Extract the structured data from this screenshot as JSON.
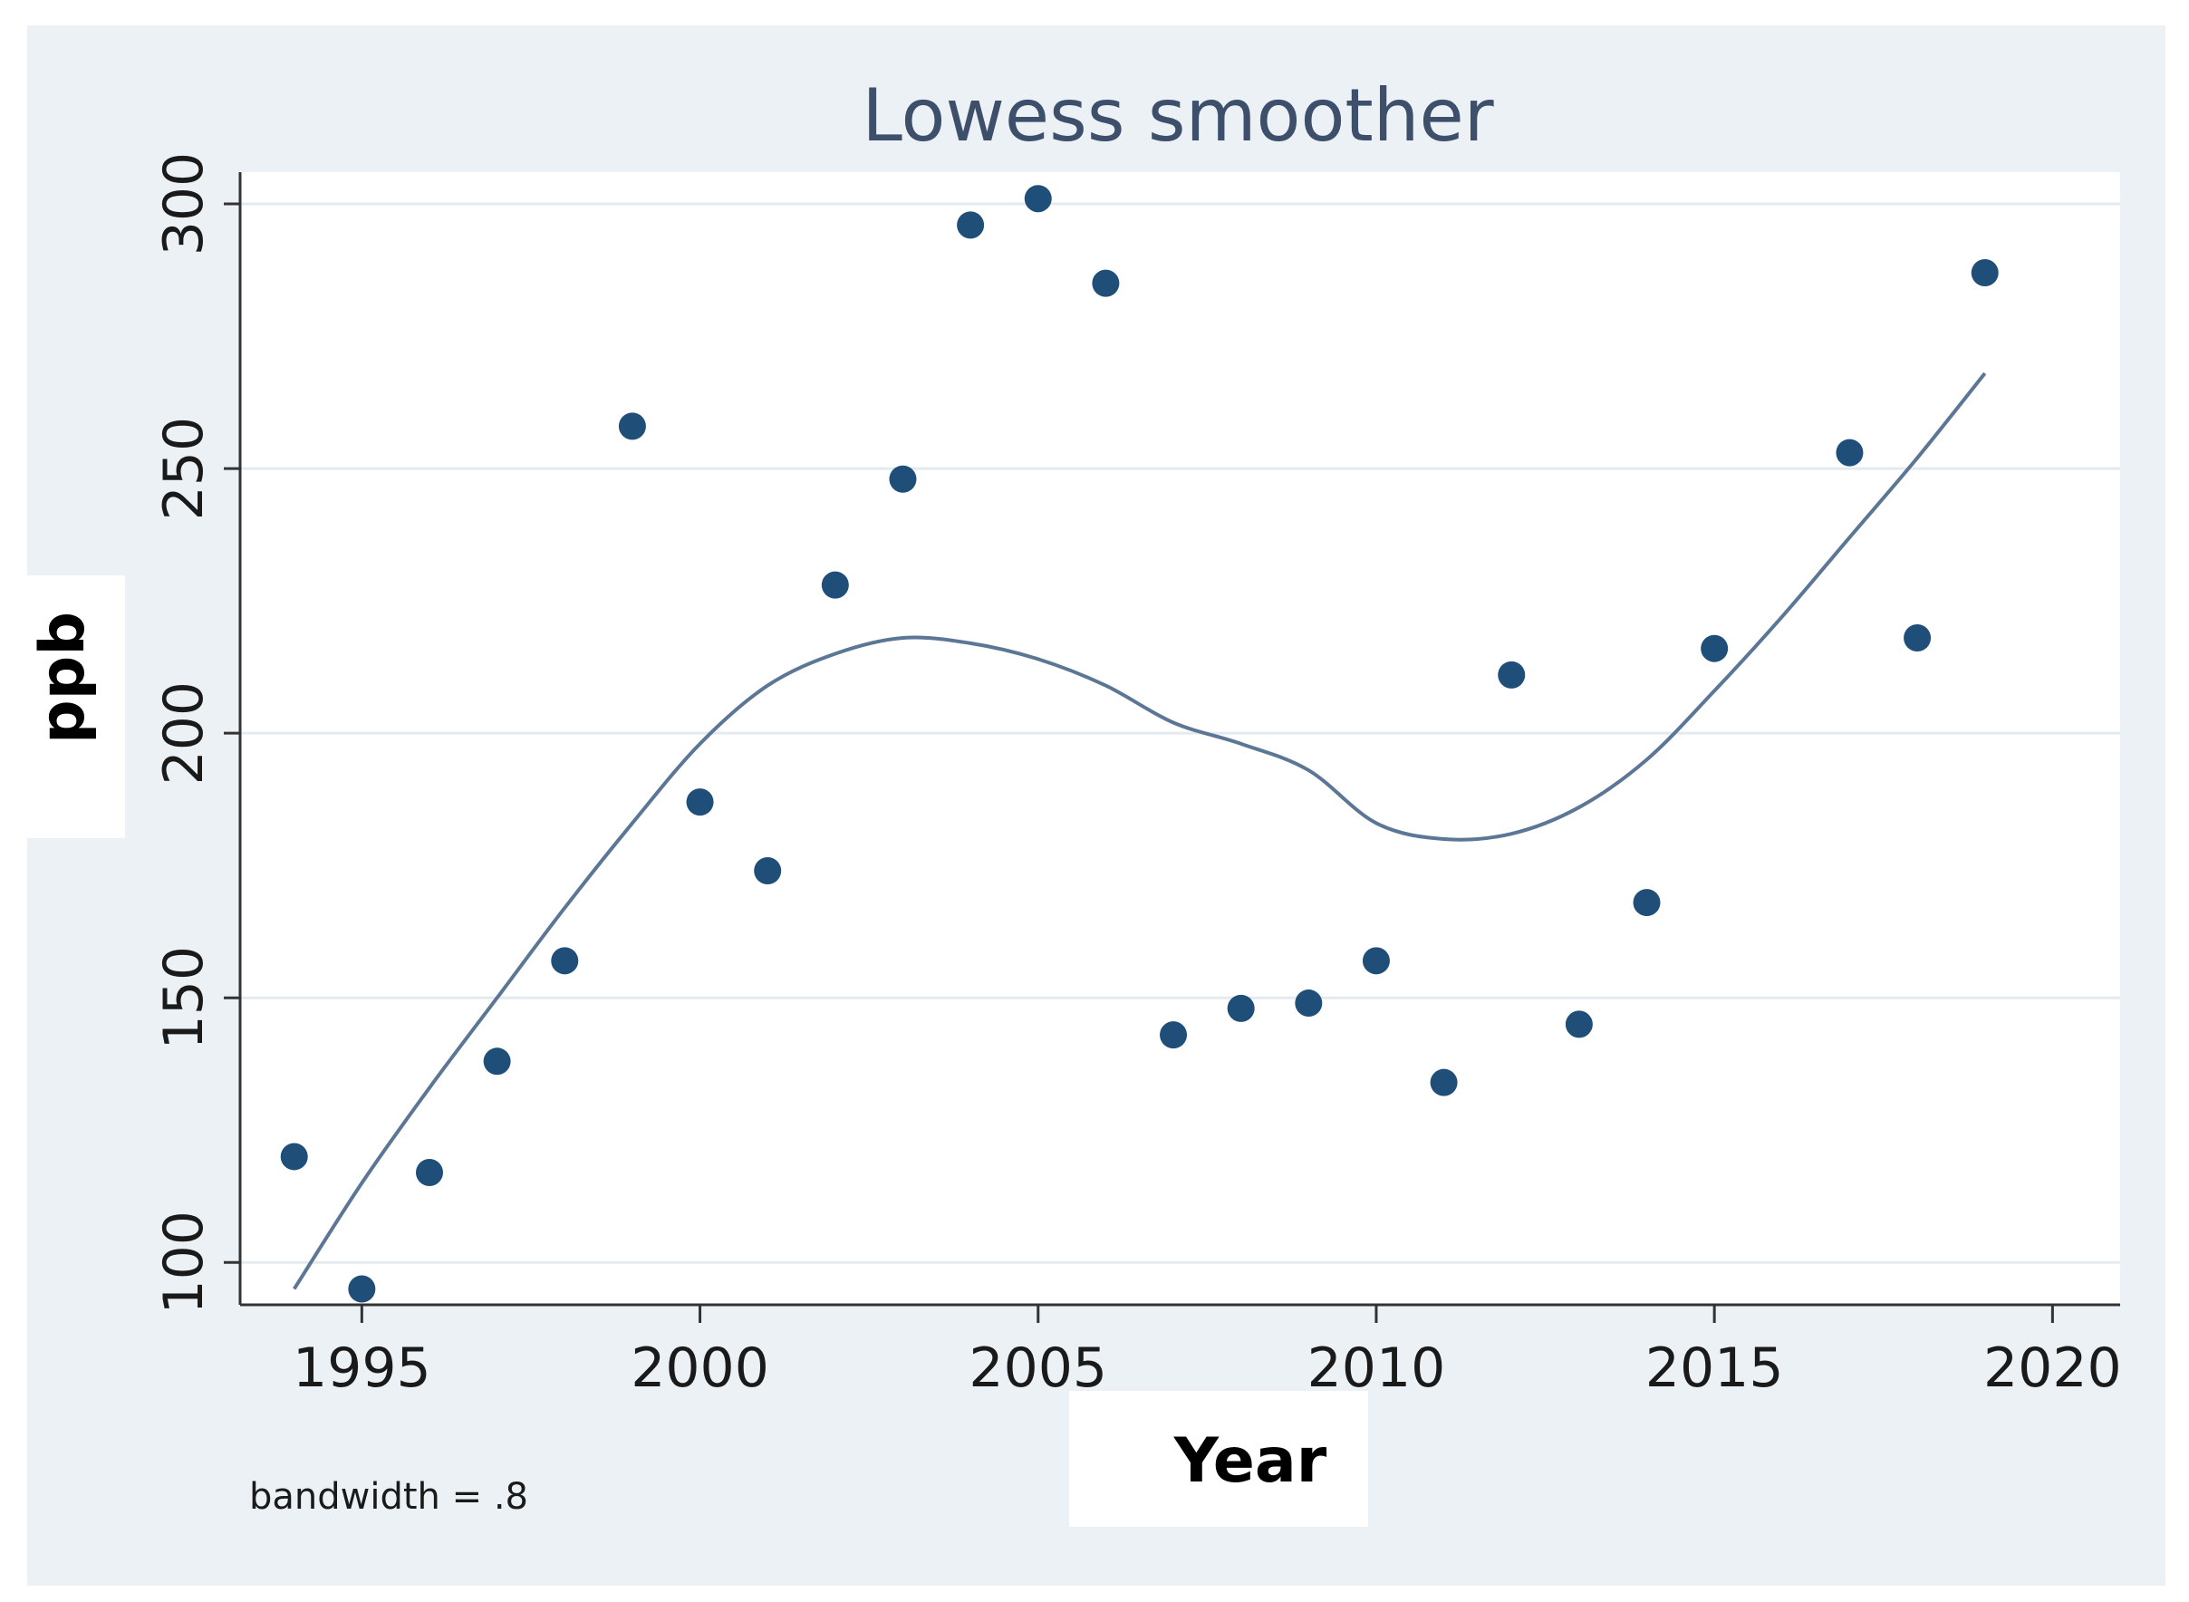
{
  "chart_data": {
    "type": "scatter",
    "title": "Lowess smoother",
    "xlabel": "Year",
    "ylabel": "ppb",
    "note": "bandwidth = .8",
    "xlim": [
      1993.2,
      2021
    ],
    "ylim": [
      92,
      306
    ],
    "x_ticks": [
      1995,
      2000,
      2005,
      2010,
      2015,
      2020
    ],
    "y_ticks": [
      100,
      150,
      200,
      250,
      300
    ],
    "grid": true,
    "colors": {
      "background": "#ebf1f4",
      "plot": "#ffffff",
      "marker": "#1f4e79",
      "line": "#5b7795",
      "grid": "#e4ebf0"
    },
    "series": [
      {
        "name": "ppb",
        "kind": "scatter",
        "x": [
          1994,
          1995,
          1996,
          1997,
          1998,
          1999,
          2000,
          2001,
          2002,
          2003,
          2004,
          2005,
          2006,
          2007,
          2008,
          2009,
          2010,
          2011,
          2012,
          2013,
          2014,
          2015,
          2017,
          2018,
          2019
        ],
        "y": [
          120,
          95,
          117,
          138,
          157,
          258,
          187,
          174,
          228,
          248,
          296,
          301,
          285,
          143,
          148,
          149,
          157,
          134,
          211,
          145,
          168,
          216,
          253,
          218,
          287
        ]
      },
      {
        "name": "lowess",
        "kind": "line",
        "x": [
          1994,
          1995,
          1996,
          1997,
          1998,
          1999,
          2000,
          2001,
          2002,
          2003,
          2004,
          2005,
          2006,
          2007,
          2008,
          2009,
          2010,
          2011,
          2012,
          2013,
          2014,
          2015,
          2016,
          2017,
          2018,
          2019
        ],
        "y": [
          95,
          115,
          133,
          150,
          167,
          183,
          198,
          209,
          215,
          218,
          217,
          214,
          209,
          202,
          198,
          193,
          183,
          180,
          181,
          186,
          195,
          208,
          222,
          237,
          252,
          268
        ]
      }
    ]
  }
}
